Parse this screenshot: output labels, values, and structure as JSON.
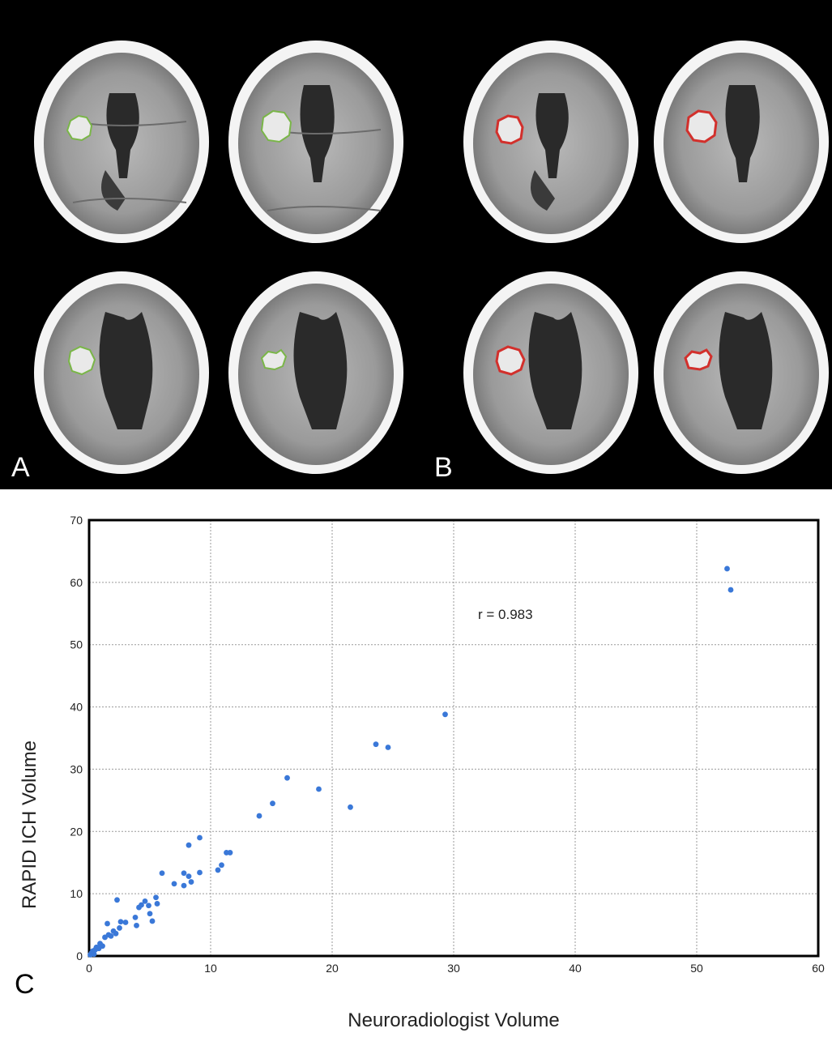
{
  "panels": {
    "a_label": "A",
    "b_label": "B",
    "c_label": "C",
    "a_outline_color": "#7ab648",
    "b_outline_color": "#d2302c"
  },
  "chart_data": {
    "type": "scatter",
    "xlabel": "Neuroradiologist Volume",
    "ylabel": "RAPID ICH Volume",
    "xlim": [
      0,
      60
    ],
    "ylim": [
      0,
      70
    ],
    "xticks": [
      0,
      10,
      20,
      30,
      40,
      50,
      60
    ],
    "yticks": [
      0,
      10,
      20,
      30,
      40,
      50,
      60,
      70
    ],
    "grid": true,
    "annotation": "r = 0.983",
    "point_color": "#3a78d8",
    "points": [
      [
        0.1,
        0.2
      ],
      [
        0.2,
        0.5
      ],
      [
        0.3,
        0.8
      ],
      [
        0.4,
        0.3
      ],
      [
        0.5,
        1.0
      ],
      [
        0.6,
        1.4
      ],
      [
        0.8,
        1.2
      ],
      [
        0.9,
        2.0
      ],
      [
        1.1,
        1.6
      ],
      [
        1.3,
        3.0
      ],
      [
        1.5,
        5.2
      ],
      [
        1.6,
        3.4
      ],
      [
        1.8,
        3.2
      ],
      [
        2.0,
        4.0
      ],
      [
        2.2,
        3.6
      ],
      [
        2.3,
        9.0
      ],
      [
        2.5,
        4.5
      ],
      [
        2.6,
        5.5
      ],
      [
        3.0,
        5.4
      ],
      [
        3.8,
        6.2
      ],
      [
        3.9,
        4.9
      ],
      [
        4.1,
        7.8
      ],
      [
        4.3,
        8.2
      ],
      [
        4.6,
        8.8
      ],
      [
        4.9,
        8.1
      ],
      [
        5.0,
        6.8
      ],
      [
        5.2,
        5.6
      ],
      [
        5.5,
        9.4
      ],
      [
        5.6,
        8.4
      ],
      [
        6.0,
        13.3
      ],
      [
        7.0,
        11.6
      ],
      [
        7.8,
        11.3
      ],
      [
        7.8,
        13.3
      ],
      [
        8.2,
        17.8
      ],
      [
        8.2,
        12.8
      ],
      [
        8.4,
        11.9
      ],
      [
        9.1,
        19.0
      ],
      [
        9.1,
        13.4
      ],
      [
        10.6,
        13.8
      ],
      [
        10.9,
        14.6
      ],
      [
        11.3,
        16.6
      ],
      [
        11.6,
        16.6
      ],
      [
        14.0,
        22.5
      ],
      [
        15.1,
        24.5
      ],
      [
        16.3,
        28.6
      ],
      [
        18.9,
        26.8
      ],
      [
        21.5,
        23.9
      ],
      [
        23.6,
        34.0
      ],
      [
        24.6,
        33.5
      ],
      [
        29.3,
        38.8
      ],
      [
        52.5,
        62.2
      ],
      [
        52.8,
        58.8
      ]
    ]
  }
}
